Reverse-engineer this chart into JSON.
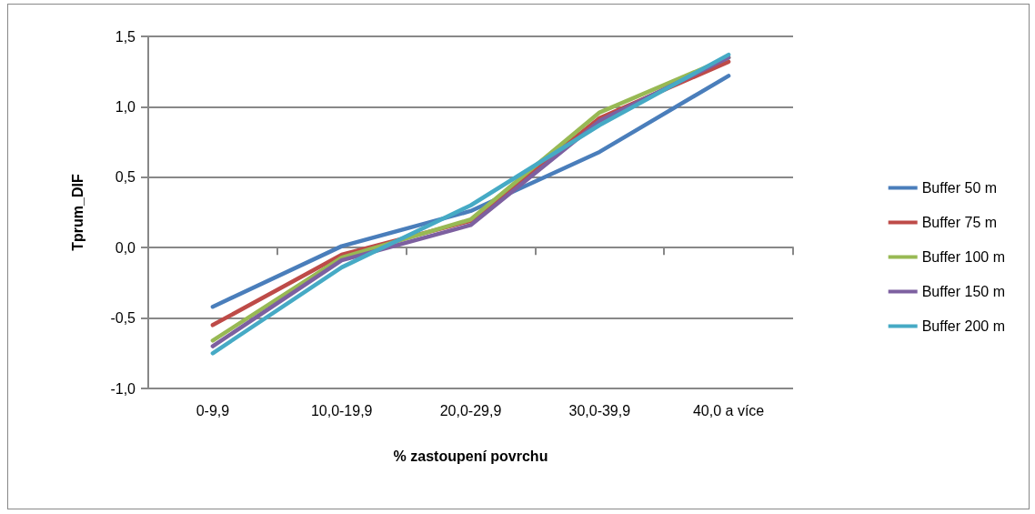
{
  "chart_data": {
    "type": "line",
    "xlabel": "% zastoupení povrchu",
    "ylabel": "Tprum_DIF",
    "categories": [
      "0-9,9",
      "10,0-19,9",
      "20,0-29,9",
      "30,0-39,9",
      "40,0 a více"
    ],
    "series": [
      {
        "name": "Buffer 50 m",
        "color": "#4a7ebb",
        "values": [
          -0.42,
          0.01,
          0.26,
          0.68,
          1.22
        ]
      },
      {
        "name": "Buffer 75 m",
        "color": "#be4b48",
        "values": [
          -0.55,
          -0.05,
          0.19,
          0.92,
          1.32
        ]
      },
      {
        "name": "Buffer 100 m",
        "color": "#98b954",
        "values": [
          -0.66,
          -0.07,
          0.2,
          0.96,
          1.35
        ]
      },
      {
        "name": "Buffer 150 m",
        "color": "#7d60a0",
        "values": [
          -0.7,
          -0.09,
          0.16,
          0.9,
          1.35
        ]
      },
      {
        "name": "Buffer 200 m",
        "color": "#46aac5",
        "values": [
          -0.75,
          -0.14,
          0.3,
          0.87,
          1.37
        ]
      }
    ],
    "ylim": [
      -1,
      1.5
    ],
    "yticks": [
      {
        "value": -1,
        "label": "-1,0"
      },
      {
        "value": -0.5,
        "label": "-0,5"
      },
      {
        "value": 0,
        "label": "0,0"
      },
      {
        "value": 0.5,
        "label": "0,5"
      },
      {
        "value": 1,
        "label": "1,0"
      },
      {
        "value": 1.5,
        "label": "1,5"
      }
    ],
    "grid": "y",
    "legend": "right",
    "marker": "none",
    "line_style": "solid"
  }
}
